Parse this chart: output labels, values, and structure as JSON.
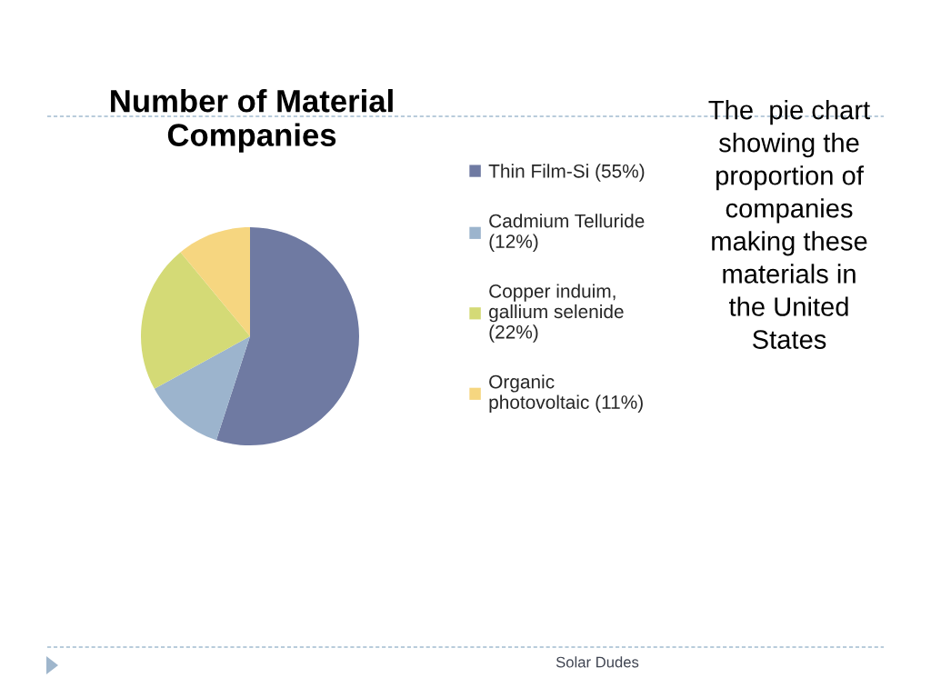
{
  "chart_data": {
    "type": "pie",
    "title": "Number of Material\nCompanies",
    "categories": [
      "Thin Film-Si (55%)",
      "Cadmium Telluride\n(12%)",
      "Copper induim,\ngallium selenide\n(22%)",
      "Organic\nphotovoltaic (11%)"
    ],
    "values": [
      55,
      12,
      22,
      11
    ],
    "colors": [
      "#6f7aa2",
      "#9cb4cd",
      "#d4da76",
      "#f6d680"
    ],
    "legend": "right",
    "annotations": [
      "The  pie chart\nshowing the\nproportion of\ncompanies\nmaking these\nmaterials in\nthe United\nStates",
      "Solar Dudes"
    ]
  }
}
